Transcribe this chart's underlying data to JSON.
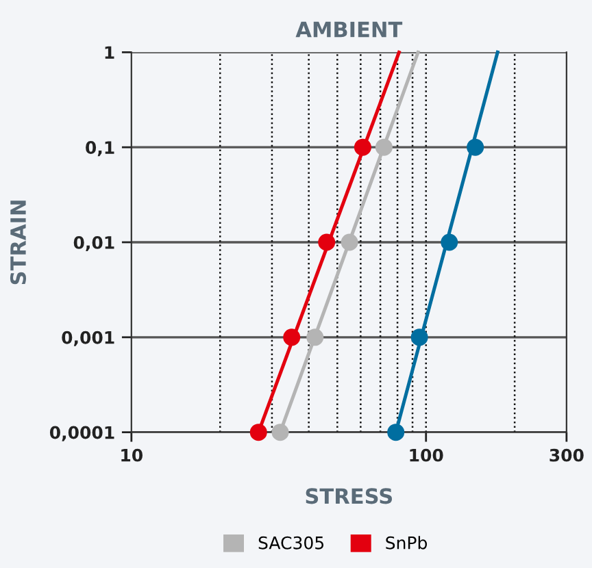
{
  "chart_data": {
    "type": "scatter",
    "title": "AMBIENT",
    "xlabel": "STRESS",
    "ylabel": "STRAIN",
    "log": "xy",
    "xlim": [
      10,
      300
    ],
    "xticks": [
      10,
      100,
      300
    ],
    "ylim": [
      0.0001,
      1
    ],
    "yticks": [
      {
        "value": 0.0001,
        "label": "0,0001"
      },
      {
        "value": 0.001,
        "label": "0,001"
      },
      {
        "value": 0.01,
        "label": "0,01"
      },
      {
        "value": 0.1,
        "label": "0,1"
      },
      {
        "value": 1,
        "label": "1"
      }
    ],
    "grid": "y",
    "legend": "bottom",
    "marker": "circle",
    "ref_lines": [
      {
        "axis": "x",
        "value": 20,
        "line_style": "dotted"
      },
      {
        "axis": "x",
        "value": 30,
        "line_style": "dotted"
      },
      {
        "axis": "x",
        "value": 40,
        "line_style": "dotted"
      },
      {
        "axis": "x",
        "value": 50,
        "line_style": "dotted"
      },
      {
        "axis": "x",
        "value": 60,
        "line_style": "dotted"
      },
      {
        "axis": "x",
        "value": 70,
        "line_style": "dotted"
      },
      {
        "axis": "x",
        "value": 80,
        "line_style": "dotted"
      },
      {
        "axis": "x",
        "value": 90,
        "line_style": "dotted"
      },
      {
        "axis": "x",
        "value": 100,
        "line_style": "dotted"
      },
      {
        "axis": "x",
        "value": 200,
        "line_style": "dotted"
      }
    ],
    "series": [
      {
        "type": "line",
        "marker": "none",
        "color": "#006ea0",
        "x": [
          79,
          175
        ],
        "values": [
          0.0001,
          1
        ]
      },
      {
        "type": "line",
        "marker": "none",
        "color": "#b4b4b4",
        "x": [
          32,
          94
        ],
        "values": [
          0.0001,
          1
        ]
      },
      {
        "type": "line",
        "marker": "none",
        "color": "#e3000f",
        "x": [
          27,
          81
        ],
        "values": [
          0.0001,
          1
        ]
      },
      {
        "color": "#006ea0",
        "x": [
          79,
          95,
          120,
          147
        ],
        "values": [
          0.0001,
          0.001,
          0.01,
          0.1
        ]
      },
      {
        "name": "SAC305",
        "color": "#b4b4b4",
        "x": [
          32,
          42,
          55,
          72
        ],
        "values": [
          0.0001,
          0.001,
          0.01,
          0.1
        ]
      },
      {
        "name": "SnPb",
        "color": "#e3000f",
        "x": [
          27,
          35,
          46,
          61
        ],
        "values": [
          0.0001,
          0.001,
          0.01,
          0.1
        ]
      }
    ]
  }
}
